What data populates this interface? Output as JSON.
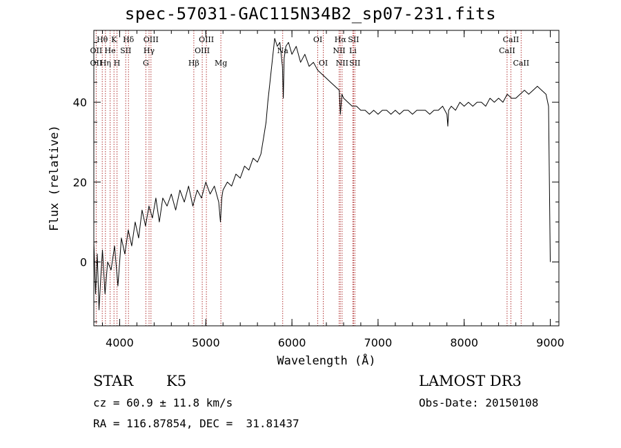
{
  "title": "spec-57031-GAC115N34B2_sp07-231.fits",
  "chart_data": {
    "type": "line",
    "title": "spec-57031-GAC115N34B2_sp07-231.fits",
    "xlabel": "Wavelength (Å)",
    "ylabel": "Flux (relative)",
    "xlim": [
      3700,
      9100
    ],
    "ylim": [
      -16,
      58
    ],
    "x_ticks": [
      4000,
      5000,
      6000,
      7000,
      8000,
      9000
    ],
    "y_ticks": [
      0,
      20,
      40
    ],
    "series": [
      {
        "name": "spectrum",
        "x": [
          3700,
          3720,
          3740,
          3760,
          3780,
          3800,
          3830,
          3860,
          3900,
          3940,
          3980,
          4020,
          4060,
          4100,
          4140,
          4180,
          4220,
          4260,
          4300,
          4340,
          4380,
          4420,
          4460,
          4500,
          4550,
          4600,
          4650,
          4700,
          4750,
          4800,
          4850,
          4900,
          4950,
          5000,
          5050,
          5100,
          5150,
          5170,
          5185,
          5200,
          5250,
          5300,
          5350,
          5400,
          5450,
          5500,
          5550,
          5600,
          5640,
          5670,
          5700,
          5720,
          5740,
          5760,
          5780,
          5800,
          5830,
          5860,
          5890,
          5900,
          5910,
          5930,
          5960,
          6000,
          6050,
          6100,
          6150,
          6200,
          6250,
          6300,
          6350,
          6400,
          6450,
          6500,
          6550,
          6563,
          6580,
          6600,
          6650,
          6700,
          6750,
          6800,
          6850,
          6900,
          6950,
          7000,
          7050,
          7100,
          7150,
          7200,
          7250,
          7300,
          7350,
          7400,
          7450,
          7500,
          7550,
          7600,
          7650,
          7700,
          7750,
          7800,
          7810,
          7820,
          7850,
          7900,
          7950,
          8000,
          8050,
          8100,
          8150,
          8200,
          8250,
          8300,
          8350,
          8400,
          8450,
          8500,
          8550,
          8600,
          8650,
          8700,
          8750,
          8800,
          8850,
          8900,
          8950,
          8980,
          9000
        ],
        "y": [
          5,
          -8,
          2,
          -12,
          -4,
          3,
          -8,
          0,
          -2,
          4,
          -6,
          6,
          2,
          8,
          4,
          10,
          6,
          13,
          9,
          14,
          11,
          16,
          10,
          16,
          14,
          17,
          13,
          18,
          15,
          19,
          14,
          18,
          16,
          20,
          17,
          19,
          15,
          10,
          16,
          18,
          20,
          19,
          22,
          21,
          24,
          23,
          26,
          25,
          27,
          31,
          35,
          40,
          44,
          48,
          52,
          56,
          54,
          55,
          49,
          41,
          51,
          54,
          55,
          52,
          54,
          50,
          52,
          49,
          50,
          48,
          47,
          46,
          45,
          44,
          43,
          37,
          42,
          41,
          40,
          39,
          39,
          38,
          38,
          37,
          38,
          37,
          38,
          38,
          37,
          38,
          37,
          38,
          38,
          37,
          38,
          38,
          38,
          37,
          38,
          38,
          39,
          37,
          34,
          38,
          39,
          38,
          40,
          39,
          40,
          39,
          40,
          40,
          39,
          41,
          40,
          41,
          40,
          42,
          41,
          41,
          42,
          43,
          42,
          43,
          44,
          43,
          42,
          39,
          0
        ]
      }
    ],
    "line_labels": [
      {
        "label": "Hθ",
        "wavelength": 3798,
        "row": 0
      },
      {
        "label": "OII",
        "wavelength": 3727,
        "row": 1
      },
      {
        "label": "OII",
        "wavelength": 3727,
        "row": 2
      },
      {
        "label": "He",
        "wavelength": 3889,
        "row": 1
      },
      {
        "label": "Hη",
        "wavelength": 3835,
        "row": 2
      },
      {
        "label": "K",
        "wavelength": 3934,
        "row": 0
      },
      {
        "label": "SII",
        "wavelength": 4070,
        "row": 1
      },
      {
        "label": "H",
        "wavelength": 3969,
        "row": 2
      },
      {
        "label": "Hδ",
        "wavelength": 4102,
        "row": 0
      },
      {
        "label": "OIII",
        "wavelength": 4363,
        "row": 0
      },
      {
        "label": "Hγ",
        "wavelength": 4341,
        "row": 1
      },
      {
        "label": "G",
        "wavelength": 4304,
        "row": 2
      },
      {
        "label": "OIII",
        "wavelength": 5007,
        "row": 0
      },
      {
        "label": "OIII",
        "wavelength": 4959,
        "row": 1
      },
      {
        "label": "Hβ",
        "wavelength": 4861,
        "row": 2
      },
      {
        "label": "Mg",
        "wavelength": 5175,
        "row": 2
      },
      {
        "label": "Na",
        "wavelength": 5893,
        "row": 1
      },
      {
        "label": "OI",
        "wavelength": 6300,
        "row": 0
      },
      {
        "label": "OI",
        "wavelength": 6364,
        "row": 2
      },
      {
        "label": "Hα",
        "wavelength": 6563,
        "row": 0
      },
      {
        "label": "SII",
        "wavelength": 6716,
        "row": 0
      },
      {
        "label": "NII",
        "wavelength": 6548,
        "row": 1
      },
      {
        "label": "Li",
        "wavelength": 6708,
        "row": 1
      },
      {
        "label": "NII",
        "wavelength": 6583,
        "row": 2
      },
      {
        "label": "SII",
        "wavelength": 6731,
        "row": 2
      },
      {
        "label": "CaII",
        "wavelength": 8542,
        "row": 0
      },
      {
        "label": "CaII",
        "wavelength": 8498,
        "row": 1
      },
      {
        "label": "CaII",
        "wavelength": 8662,
        "row": 2
      }
    ],
    "line_wavelengths": [
      3727,
      3798,
      3835,
      3889,
      3934,
      3969,
      4070,
      4102,
      4304,
      4341,
      4363,
      4861,
      4959,
      5007,
      5175,
      5893,
      6300,
      6364,
      6548,
      6563,
      6583,
      6708,
      6716,
      6731,
      8498,
      8542,
      8662
    ]
  },
  "info": {
    "class": "STAR",
    "subclass": "K5",
    "cz": "cz = 60.9 ± 11.8 km/s",
    "radec": "RA = 116.87854, DEC =  31.81437",
    "survey": "LAMOST DR3",
    "obsdate": "Obs-Date: 20150108"
  },
  "colors": {
    "spectrum": "#000000",
    "line_marker": "#b03030",
    "axis": "#000000"
  }
}
